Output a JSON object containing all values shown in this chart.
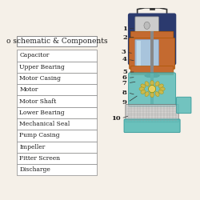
{
  "title": "o schematic & Components",
  "components": [
    "Capacitor",
    "Upper Bearing",
    "Motor Casing",
    "Motor",
    "Motor Shaft",
    "Lower Bearing",
    "Mechanical Seal",
    "Pump Casing",
    "Impeller",
    "Fitter Screen",
    "Discharge"
  ],
  "numbers": [
    "1",
    "2",
    "3",
    "4",
    "5",
    "6",
    "7",
    "8",
    "9",
    "10"
  ],
  "bg_color": "#f5f0e8",
  "table_bg": "#ffffff",
  "border_color": "#888888",
  "text_color": "#1a1a1a",
  "title_fontsize": 6.5,
  "cell_fontsize": 5.5,
  "number_fontsize": 6.0,
  "pump_parts": {
    "outer_casing_color": "#2b3a6e",
    "motor_stator_color": "#c46a30",
    "motor_rotor_color": "#a8c4dc",
    "capacitor_color": "#cccccc",
    "impeller_color": "#d4b840",
    "pump_casing_color": "#5bbcb8",
    "shaft_color": "#888888",
    "top_handle_color": "#333333",
    "discharge_color": "#5bbcb8",
    "screen_color": "#aaaaaa"
  }
}
